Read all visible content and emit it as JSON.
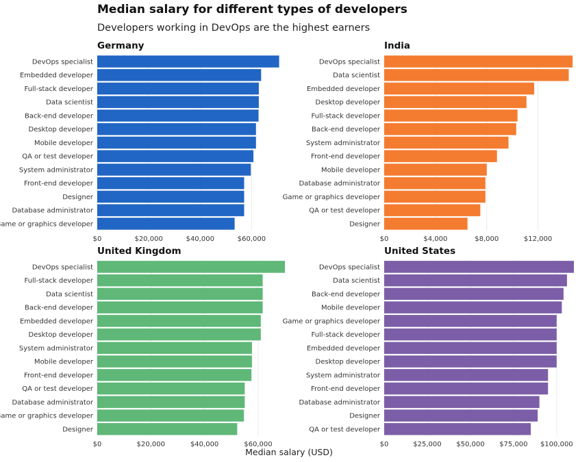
{
  "chart_data": {
    "type": "bar",
    "title": "Median salary for different types of developers",
    "subtitle": "Developers working in DevOps are the highest earners",
    "xlabel": "Median salary (USD)",
    "panels": [
      {
        "name": "Germany",
        "color": "#2166c4",
        "xlim": [
          0,
          74000
        ],
        "ticks": [
          0,
          20000,
          40000,
          60000
        ],
        "tick_labels": [
          "$0",
          "$20,000",
          "$40,000",
          "$60,000"
        ],
        "categories": [
          "DevOps specialist",
          "Embedded developer",
          "Full-stack developer",
          "Data scientist",
          "Back-end developer",
          "Desktop developer",
          "Mobile developer",
          "QA or test developer",
          "System administrator",
          "Front-end developer",
          "Designer",
          "Database administrator",
          "Game or graphics developer"
        ],
        "values": [
          70700,
          63700,
          62800,
          62800,
          62700,
          61700,
          61700,
          60700,
          59700,
          57100,
          57100,
          57100,
          53400
        ]
      },
      {
        "name": "India",
        "color": "#f47c30",
        "xlim": [
          0,
          14800
        ],
        "ticks": [
          0,
          4000,
          8000,
          12000
        ],
        "tick_labels": [
          "$0",
          "$4,000",
          "$8,000",
          "$12,000"
        ],
        "categories": [
          "DevOps specialist",
          "Data scientist",
          "Embedded developer",
          "Desktop developer",
          "Full-stack developer",
          "Back-end developer",
          "System administrator",
          "Front-end developer",
          "Mobile developer",
          "Database administrator",
          "Game or graphics developer",
          "QA or test developer",
          "Designer"
        ],
        "values": [
          14700,
          14400,
          11700,
          11100,
          10400,
          10300,
          9700,
          8800,
          8000,
          7900,
          7900,
          7500,
          6500
        ]
      },
      {
        "name": "United Kingdom",
        "color": "#5fb878",
        "xlim": [
          0,
          71000
        ],
        "ticks": [
          0,
          20000,
          40000,
          60000
        ],
        "tick_labels": [
          "$0",
          "$20,000",
          "$40,000",
          "$60,000"
        ],
        "categories": [
          "DevOps specialist",
          "Full-stack developer",
          "Data scientist",
          "Back-end developer",
          "Embedded developer",
          "Desktop developer",
          "System administrator",
          "Mobile developer",
          "Front-end developer",
          "QA or test developer",
          "Database administrator",
          "Game or graphics developer",
          "Designer"
        ],
        "values": [
          70000,
          61700,
          61700,
          61700,
          61000,
          61000,
          57700,
          57700,
          57500,
          55000,
          55000,
          54700,
          52200
        ]
      },
      {
        "name": "United States",
        "color": "#7b5ea7",
        "xlim": [
          0,
          110000
        ],
        "ticks": [
          0,
          25000,
          50000,
          75000,
          100000
        ],
        "tick_labels": [
          "$0",
          "$25,000",
          "$50,000",
          "$75,000",
          "$100,000"
        ],
        "categories": [
          "DevOps specialist",
          "Data scientist",
          "Back-end developer",
          "Mobile developer",
          "Game or graphics developer",
          "Full-stack developer",
          "Embedded developer",
          "Desktop developer",
          "System administrator",
          "Front-end developer",
          "Database administrator",
          "Designer",
          "QA or test developer"
        ],
        "values": [
          110000,
          106000,
          104000,
          103000,
          100000,
          100000,
          100000,
          100000,
          95000,
          95000,
          90000,
          89000,
          85000
        ]
      }
    ]
  }
}
